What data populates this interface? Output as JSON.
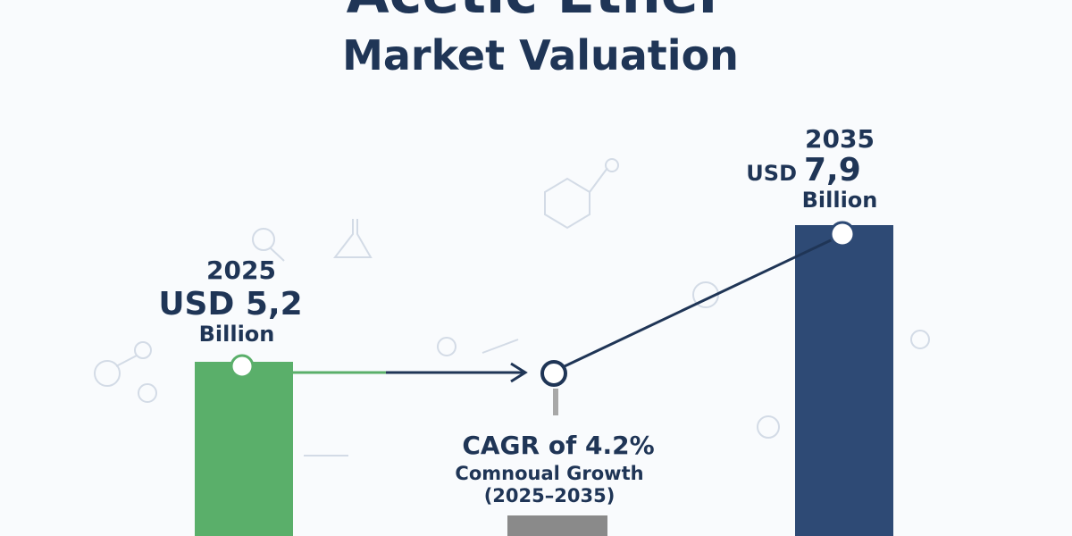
{
  "header": {
    "title": "Acetic Ether",
    "subtitle": "Market Valuation"
  },
  "start": {
    "year": "2025",
    "value": "USD 5,2",
    "unit": "Billion"
  },
  "end": {
    "year": "2035",
    "currency": "USD",
    "amount": "7,9",
    "unit": "Billion"
  },
  "growth": {
    "headline": "CAGR of 4.2%",
    "caption": "Comnoual Growth",
    "period": "(2025–2035)"
  }
}
